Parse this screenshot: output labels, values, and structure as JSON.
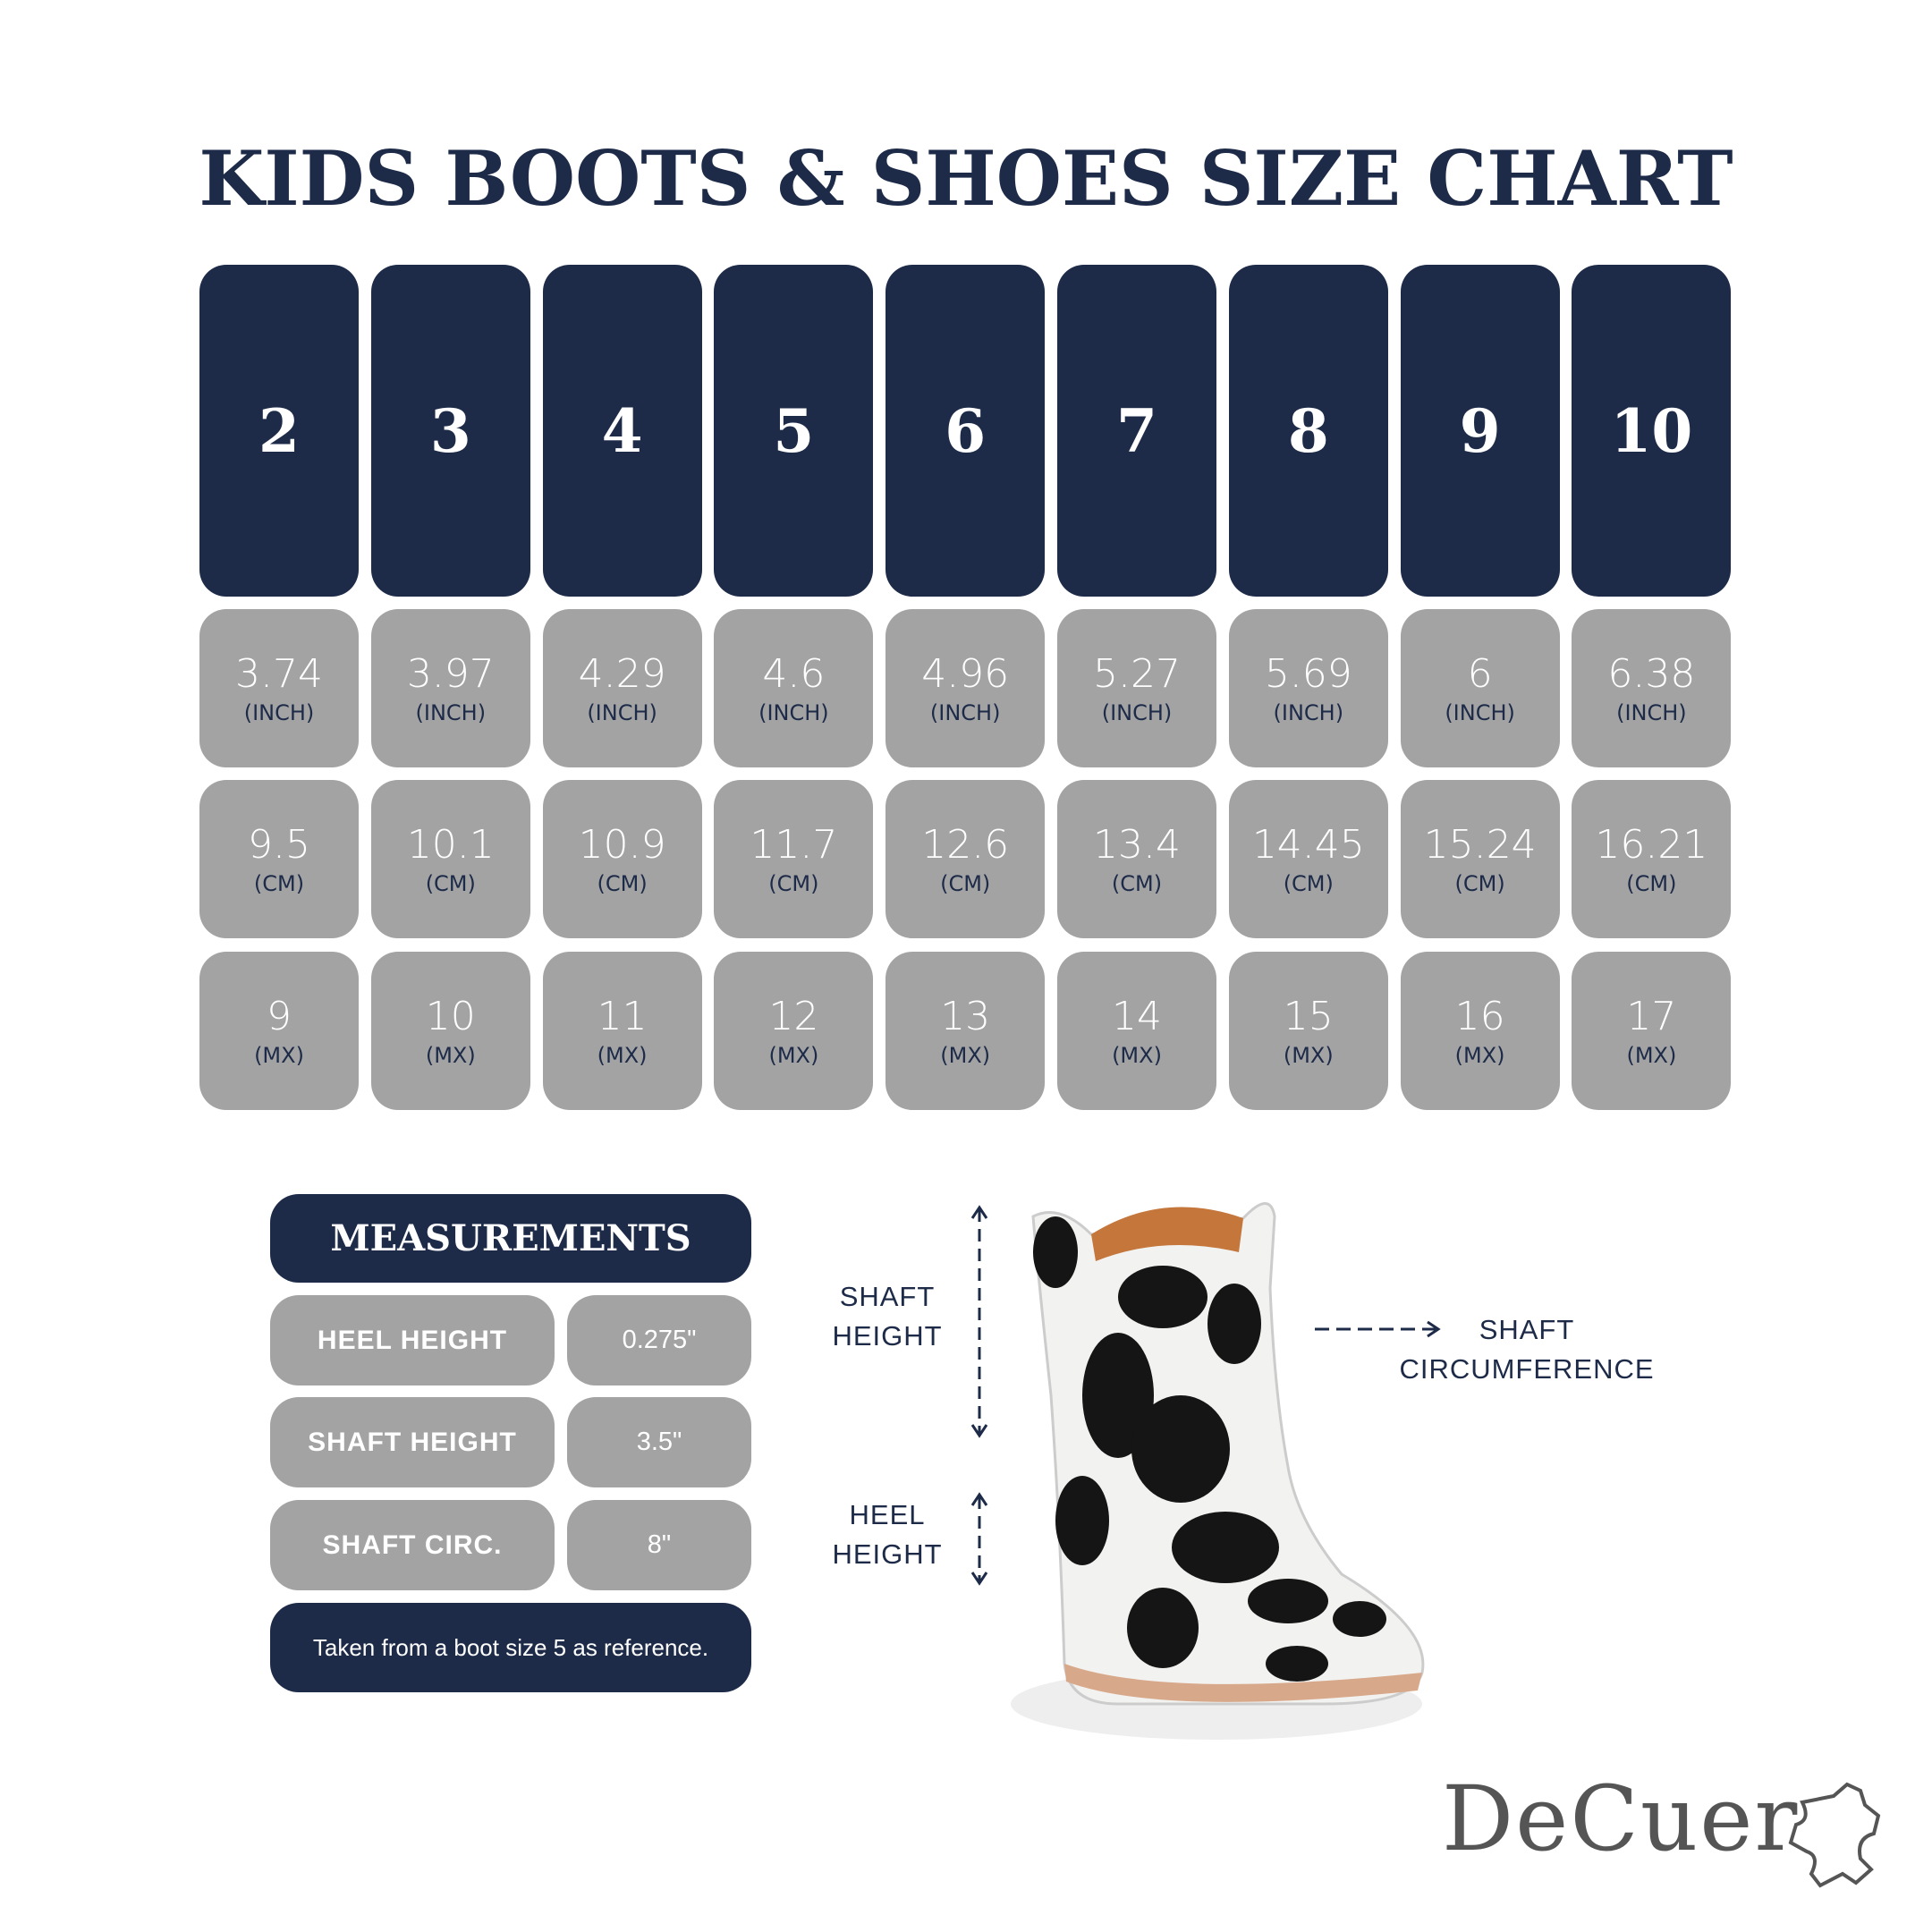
{
  "title": "KIDS BOOTS & SHOES SIZE CHART",
  "colors": {
    "navy": "#1d2b49",
    "grey": "#a3a3a3"
  },
  "size_chart": {
    "sizes": [
      "2",
      "3",
      "4",
      "5",
      "6",
      "7",
      "8",
      "9",
      "10"
    ],
    "inch": {
      "unit": "(INCH)",
      "values": [
        "3.74",
        "3.97",
        "4.29",
        "4.6",
        "4.96",
        "5.27",
        "5.69",
        "6",
        "6.38"
      ]
    },
    "cm": {
      "unit": "(CM)",
      "values": [
        "9.5",
        "10.1",
        "10.9",
        "11.7",
        "12.6",
        "13.4",
        "14.45",
        "15.24",
        "16.21"
      ]
    },
    "mx": {
      "unit": "(MX)",
      "values": [
        "9",
        "10",
        "11",
        "12",
        "13",
        "14",
        "15",
        "16",
        "17"
      ]
    }
  },
  "measurements": {
    "title": "MEASUREMENTS",
    "rows": [
      {
        "label": "HEEL HEIGHT",
        "value": "0.275\""
      },
      {
        "label": "SHAFT HEIGHT",
        "value": "3.5\""
      },
      {
        "label": "SHAFT CIRC.",
        "value": "8\""
      }
    ],
    "note": "Taken from a boot size 5 as reference."
  },
  "diagram": {
    "shaft_height": [
      "SHAFT",
      "HEIGHT"
    ],
    "heel_height": [
      "HEEL",
      "HEIGHT"
    ],
    "shaft_circumference": [
      "SHAFT",
      "CIRCUMFERENCE"
    ]
  },
  "brand": {
    "name": "DeCuer",
    "icon": "leather-hide-icon"
  }
}
